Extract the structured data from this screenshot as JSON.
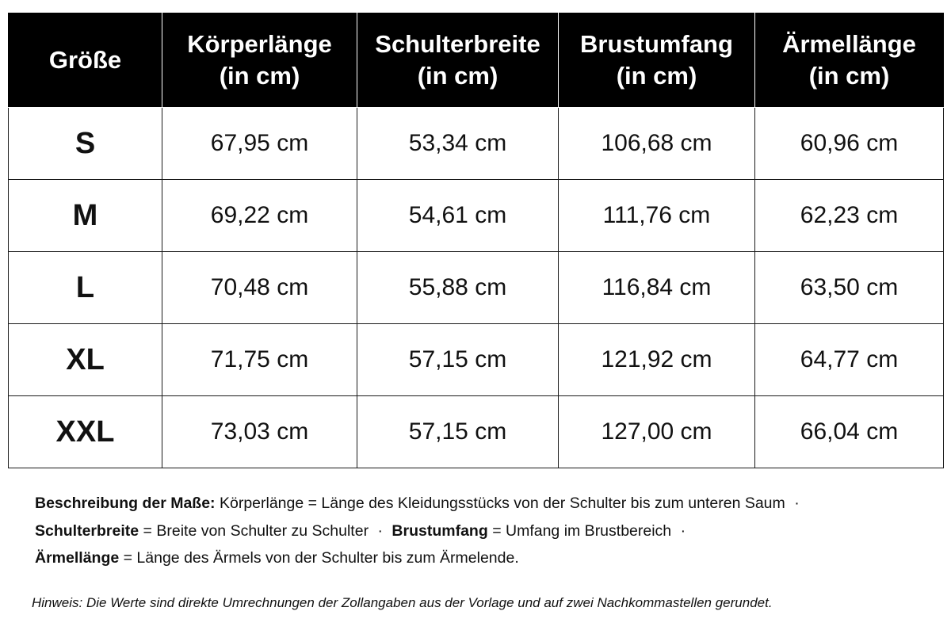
{
  "table": {
    "headers": [
      {
        "line1": "Größe",
        "line2": ""
      },
      {
        "line1": "Körperlänge",
        "line2": "(in cm)"
      },
      {
        "line1": "Schulterbreite",
        "line2": "(in cm)"
      },
      {
        "line1": "Brustumfang",
        "line2": "(in cm)"
      },
      {
        "line1": "Ärmellänge",
        "line2": "(in cm)"
      }
    ],
    "rows": [
      {
        "size": "S",
        "body_length": "67,95 cm",
        "shoulder_width": "53,34 cm",
        "chest": "106,68 cm",
        "sleeve": "60,96 cm"
      },
      {
        "size": "M",
        "body_length": "69,22 cm",
        "shoulder_width": "54,61 cm",
        "chest": "111,76 cm",
        "sleeve": "62,23 cm"
      },
      {
        "size": "L",
        "body_length": "70,48 cm",
        "shoulder_width": "55,88 cm",
        "chest": "116,84 cm",
        "sleeve": "63,50 cm"
      },
      {
        "size": "XL",
        "body_length": "71,75 cm",
        "shoulder_width": "57,15 cm",
        "chest": "121,92 cm",
        "sleeve": "64,77 cm"
      },
      {
        "size": "XXL",
        "body_length": "73,03 cm",
        "shoulder_width": "57,15 cm",
        "chest": "127,00 cm",
        "sleeve": "66,04 cm"
      }
    ]
  },
  "description": {
    "intro_label": "Beschreibung der Maße:",
    "body_length_def": "Körperlänge = Länge des Kleidungsstücks von der Schulter bis zum unteren Saum",
    "shoulder_label": "Schulterbreite",
    "shoulder_def": "= Breite von Schulter zu Schulter",
    "chest_label": "Brustumfang",
    "chest_def": "= Umfang im Brustbereich",
    "sleeve_label": "Ärmellänge",
    "sleeve_def": "= Länge des Ärmels von der Schulter bis zum Ärmelende.",
    "separator": "·"
  },
  "note": "Hinweis: Die Werte sind direkte Umrechnungen der Zollangaben aus der Vorlage und auf zwei Nachkommastellen gerundet."
}
